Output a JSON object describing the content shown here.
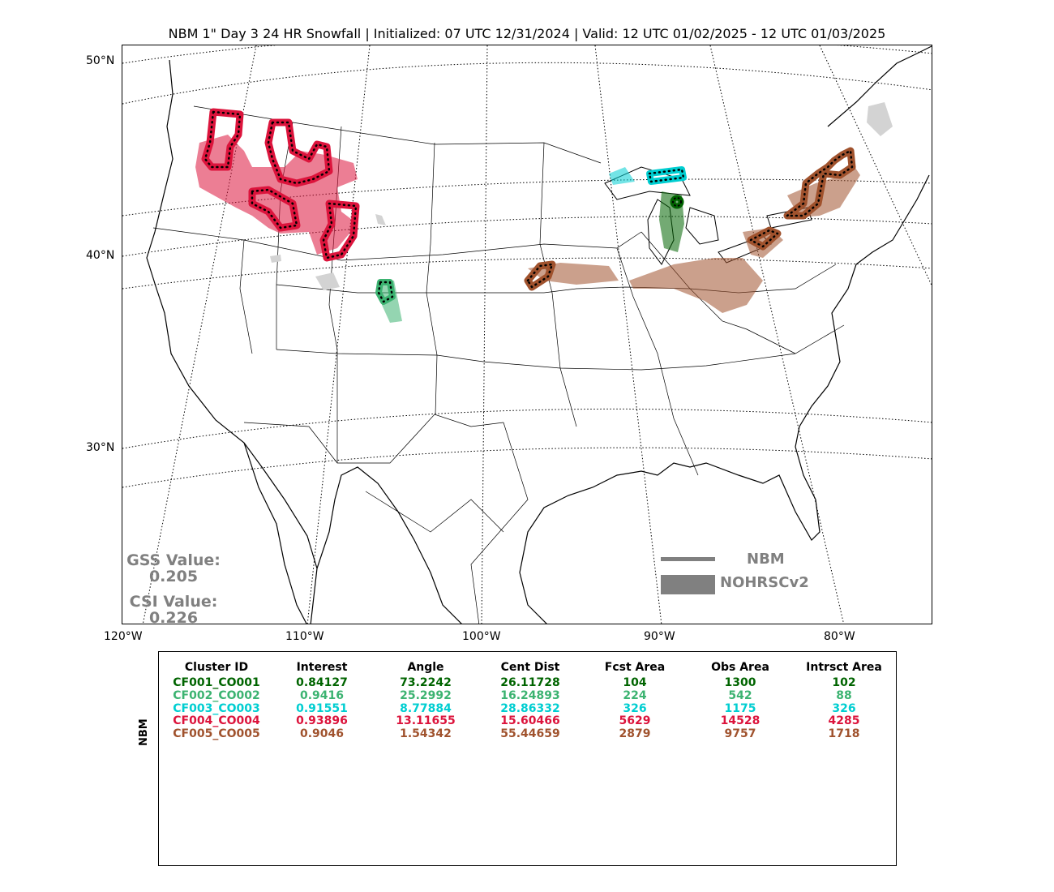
{
  "title": "NBM 1\" Day 3 24 HR Snowfall | Initialized: 07 UTC 12/31/2024 | Valid: 12 UTC 01/02/2025 - 12 UTC 01/03/2025",
  "lat_labels": [
    "50°N",
    "40°N",
    "30°N"
  ],
  "lon_labels": [
    "120°W",
    "110°W",
    "100°W",
    "90°W",
    "80°W"
  ],
  "scores": {
    "gss_label": "GSS Value:",
    "gss_value": "0.205",
    "csi_label": "CSI Value:",
    "csi_value": "0.226"
  },
  "legend": {
    "forecast_label": "NBM",
    "observed_label": "NOHRSCv2",
    "color": "#808080"
  },
  "table": {
    "side_label": "NBM",
    "headers": [
      "Cluster ID",
      "Interest",
      "Angle",
      "Cent Dist",
      "Fcst Area",
      "Obs Area",
      "Intrsct Area"
    ],
    "rows": [
      {
        "color": "#006400",
        "cells": [
          "CF001_CO001",
          "0.84127",
          "73.2242",
          "26.11728",
          "104",
          "1300",
          "102"
        ]
      },
      {
        "color": "#3cb371",
        "cells": [
          "CF002_CO002",
          "0.9416",
          "25.2992",
          "16.24893",
          "224",
          "542",
          "88"
        ]
      },
      {
        "color": "#00ced1",
        "cells": [
          "CF003_CO003",
          "0.91551",
          "8.77884",
          "28.86332",
          "326",
          "1175",
          "326"
        ]
      },
      {
        "color": "#dc143c",
        "cells": [
          "CF004_CO004",
          "0.93896",
          "13.11655",
          "15.60466",
          "5629",
          "14528",
          "4285"
        ]
      },
      {
        "color": "#a0522d",
        "cells": [
          "CF005_CO005",
          "0.9046",
          "1.54342",
          "55.44659",
          "2879",
          "9757",
          "1718"
        ]
      }
    ]
  },
  "cluster_colors": {
    "c1": "#006400",
    "c2": "#3cb371",
    "c3": "#00ced1",
    "c4": "#dc143c",
    "c5": "#a0522d",
    "unmatched": "#d3d3d3"
  }
}
